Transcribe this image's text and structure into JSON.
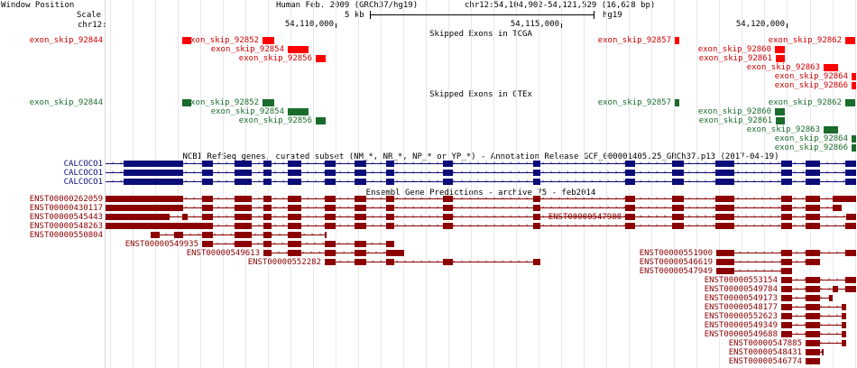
{
  "header": {
    "window_position_label": "Window Position",
    "scale_label": "Scale",
    "chrom_label": "chr12:",
    "assembly": "Human Feb. 2009 (GRCh37/hg19)",
    "position": "chr12:54,104,902-54,121,529 (16,628 bp)",
    "scale_text": "5 kb",
    "scale_db": "hg19",
    "ruler_ticks": [
      "54,110,000",
      "54,115,000",
      "54,120,000"
    ]
  },
  "view": {
    "start": 54104902,
    "end": 54121529
  },
  "colors": {
    "tcga": "#ff0000",
    "tcga_label": "#cc0000",
    "gtex": "#1a6b2c",
    "gtex_label": "#1a6b2c",
    "refseq": "#0c0c78",
    "ensembl": "#8b0000"
  },
  "tracks": {
    "tcga_title": "Skipped Exons in TCGA",
    "gtex_title": "Skipped Exons in GTEx",
    "refseq_title": "NCBI RefSeq genes, curated subset (NM_*, NR_*, NP_* or YP_*) - Annotation Release GCF_000001405.25_GRCh37.p13 (2017-04-19)",
    "ensembl_title": "Ensembl Gene Predictions - archive 75 - feb2014"
  },
  "skipped_exons": [
    {
      "name": "exon_skip_92844",
      "row": 0,
      "start": 54106600,
      "end": 54106790
    },
    {
      "name": "exon_skip_92852",
      "row": 0,
      "start": 54108370,
      "end": 54108620
    },
    {
      "name": "exon_skip_92854",
      "row": 1,
      "start": 54108940,
      "end": 54109390
    },
    {
      "name": "exon_skip_92856",
      "row": 2,
      "start": 54109560,
      "end": 54109780
    },
    {
      "name": "exon_skip_92857",
      "row": 0,
      "start": 54117510,
      "end": 54117600
    },
    {
      "name": "exon_skip_92862",
      "row": 0,
      "start": 54121280,
      "end": 54121500
    },
    {
      "name": "exon_skip_92860",
      "row": 1,
      "start": 54119740,
      "end": 54119960
    },
    {
      "name": "exon_skip_92861",
      "row": 2,
      "start": 54119760,
      "end": 54119960
    },
    {
      "name": "exon_skip_92863",
      "row": 3,
      "start": 54120810,
      "end": 54121130
    },
    {
      "name": "exon_skip_92864",
      "row": 4,
      "start": 54121420,
      "end": 54121529
    },
    {
      "name": "exon_skip_92866",
      "row": 5,
      "start": 54121420,
      "end": 54121529
    }
  ],
  "refseq_genes": [
    {
      "name": "CALCOCO1",
      "start": 54104902,
      "end": 54121529,
      "exons": [
        [
          54105300,
          54106620
        ],
        [
          54107050,
          54107290
        ],
        [
          54107750,
          54108120
        ],
        [
          54108400,
          54108570
        ],
        [
          54108940,
          54109240
        ],
        [
          54109760,
          54110000
        ],
        [
          54110420,
          54110680
        ],
        [
          54111110,
          54111280
        ],
        [
          54112380,
          54112600
        ],
        [
          54114380,
          54114540
        ],
        [
          54116420,
          54116630
        ],
        [
          54117450,
          54117700
        ],
        [
          54118410,
          54118820
        ],
        [
          54119870,
          54120100
        ],
        [
          54120400,
          54120720
        ],
        [
          54121290,
          54121529
        ]
      ]
    },
    {
      "name": "CALCOCO1",
      "start": 54104902,
      "end": 54121529,
      "exons": [
        [
          54105300,
          54106620
        ],
        [
          54107050,
          54107290
        ],
        [
          54107750,
          54108120
        ],
        [
          54108400,
          54108570
        ],
        [
          54108940,
          54109240
        ],
        [
          54109760,
          54110000
        ],
        [
          54110420,
          54110680
        ],
        [
          54111110,
          54111280
        ],
        [
          54112380,
          54112600
        ],
        [
          54114380,
          54114540
        ],
        [
          54116420,
          54116630
        ],
        [
          54117450,
          54117700
        ],
        [
          54118410,
          54118820
        ],
        [
          54119870,
          54120100
        ],
        [
          54120400,
          54120720
        ],
        [
          54121290,
          54121529
        ]
      ]
    },
    {
      "name": "CALCOCO1",
      "start": 54104902,
      "end": 54121529,
      "exons": [
        [
          54105300,
          54106620
        ],
        [
          54107050,
          54107290
        ],
        [
          54107750,
          54108120
        ],
        [
          54108400,
          54108570
        ],
        [
          54108940,
          54109240
        ],
        [
          54109760,
          54110000
        ],
        [
          54110420,
          54110680
        ],
        [
          54111110,
          54111280
        ],
        [
          54112380,
          54112600
        ],
        [
          54114380,
          54114540
        ],
        [
          54116420,
          54116630
        ],
        [
          54117450,
          54117700
        ],
        [
          54118410,
          54118820
        ],
        [
          54119870,
          54120100
        ],
        [
          54120400,
          54120720
        ],
        [
          54121290,
          54121529
        ]
      ]
    }
  ],
  "ensembl_transcripts": [
    {
      "name": "ENST00000262059",
      "label_side": "gutter",
      "row": 0,
      "start": 54104902,
      "end": 54121529,
      "exons": [
        [
          54104902,
          54106620
        ],
        [
          54107050,
          54107290
        ],
        [
          54107750,
          54108120
        ],
        [
          54108400,
          54108570
        ],
        [
          54108940,
          54109240
        ],
        [
          54109760,
          54110000
        ],
        [
          54110420,
          54110680
        ],
        [
          54111110,
          54111280
        ],
        [
          54112380,
          54112600
        ],
        [
          54114380,
          54114540
        ],
        [
          54116420,
          54116630
        ],
        [
          54117450,
          54117700
        ],
        [
          54118410,
          54118820
        ],
        [
          54119870,
          54120100
        ],
        [
          54120400,
          54120720
        ],
        [
          54121000,
          54121529
        ]
      ]
    },
    {
      "name": "ENST00000430117",
      "label_side": "gutter",
      "row": 1,
      "start": 54104902,
      "end": 54121200,
      "exons": [
        [
          54104902,
          54106620
        ],
        [
          54107050,
          54107290
        ],
        [
          54107750,
          54108120
        ],
        [
          54108400,
          54108570
        ],
        [
          54108940,
          54109240
        ],
        [
          54109760,
          54110000
        ],
        [
          54110420,
          54110680
        ],
        [
          54111110,
          54111280
        ],
        [
          54112380,
          54112600
        ],
        [
          54114380,
          54114540
        ],
        [
          54116420,
          54116630
        ],
        [
          54117450,
          54117700
        ],
        [
          54118410,
          54118820
        ],
        [
          54119870,
          54120100
        ],
        [
          54120400,
          54120720
        ],
        [
          54121000,
          54121200
        ]
      ]
    },
    {
      "name": "ENST00000545443",
      "label_side": "gutter",
      "row": 2,
      "start": 54104902,
      "end": 54121529,
      "exons": [
        [
          54104902,
          54106330
        ],
        [
          54106600,
          54106720
        ],
        [
          54107050,
          54107290
        ],
        [
          54107750,
          54108120
        ],
        [
          54108400,
          54108570
        ],
        [
          54108940,
          54109240
        ],
        [
          54109760,
          54110000
        ],
        [
          54110420,
          54110680
        ],
        [
          54111110,
          54111280
        ],
        [
          54112380,
          54112600
        ],
        [
          54114380,
          54114540
        ],
        [
          54116420,
          54116630
        ],
        [
          54117450,
          54117700
        ],
        [
          54118410,
          54118820
        ],
        [
          54119870,
          54120100
        ],
        [
          54120400,
          54120720
        ],
        [
          54121300,
          54121529
        ]
      ]
    },
    {
      "name": "ENST00000548263",
      "label_side": "gutter",
      "row": 3,
      "start": 54104902,
      "end": 54121529,
      "exons": [
        [
          54104902,
          54107290
        ],
        [
          54107750,
          54108120
        ],
        [
          54108400,
          54108570
        ],
        [
          54108940,
          54109240
        ],
        [
          54109760,
          54110000
        ],
        [
          54110420,
          54110680
        ],
        [
          54111110,
          54111280
        ],
        [
          54112380,
          54112600
        ],
        [
          54114380,
          54114540
        ],
        [
          54116420,
          54116630
        ],
        [
          54117450,
          54117700
        ],
        [
          54118410,
          54118820
        ],
        [
          54119870,
          54120100
        ],
        [
          54120400,
          54120720
        ],
        [
          54121290,
          54121529
        ]
      ]
    },
    {
      "name": "ENST00000550804",
      "label_side": "gutter",
      "row": 4,
      "start": 54105900,
      "end": 54109800,
      "exons": [
        [
          54105900,
          54106100
        ],
        [
          54106420,
          54106620
        ],
        [
          54107050,
          54107290
        ],
        [
          54107750,
          54108120
        ],
        [
          54108400,
          54108570
        ],
        [
          54108940,
          54109240
        ],
        [
          54109760,
          54109800
        ]
      ]
    },
    {
      "name": "ENST00000547988",
      "label_side": "left",
      "row": 2,
      "start": 54116420,
      "end": 54118820,
      "exons": [
        [
          54116420,
          54116630
        ],
        [
          54117450,
          54117700
        ],
        [
          54118410,
          54118820
        ]
      ]
    },
    {
      "name": "ENST00000549935",
      "label_side": "left",
      "row": 5,
      "start": 54107050,
      "end": 54111280,
      "exons": [
        [
          54107050,
          54107290
        ],
        [
          54107750,
          54108120
        ],
        [
          54108400,
          54108570
        ],
        [
          54108940,
          54109240
        ],
        [
          54109760,
          54110000
        ],
        [
          54110420,
          54110680
        ],
        [
          54111110,
          54111280
        ]
      ]
    },
    {
      "name": "ENST00000549613",
      "label_side": "left",
      "row": 6,
      "start": 54108400,
      "end": 54111500,
      "exons": [
        [
          54108400,
          54108570
        ],
        [
          54108940,
          54109240
        ],
        [
          54109760,
          54110000
        ],
        [
          54110420,
          54110680
        ],
        [
          54111110,
          54111500
        ]
      ]
    },
    {
      "name": "ENST00000552282",
      "label_side": "left",
      "row": 7,
      "start": 54109760,
      "end": 54114540,
      "exons": [
        [
          54109760,
          54110000
        ],
        [
          54110420,
          54110680
        ],
        [
          54111110,
          54111280
        ],
        [
          54112380,
          54112600
        ],
        [
          54114380,
          54114540
        ]
      ]
    },
    {
      "name": "ENST00000551900",
      "label_side": "left",
      "row": 6,
      "start": 54118430,
      "end": 54121529,
      "exons": [
        [
          54118430,
          54118820
        ],
        [
          54119870,
          54120100
        ],
        [
          54120400,
          54120720
        ],
        [
          54121290,
          54121529
        ]
      ]
    },
    {
      "name": "ENST00000546619",
      "label_side": "left",
      "row": 7,
      "start": 54118430,
      "end": 54120720,
      "exons": [
        [
          54118430,
          54118820
        ],
        [
          54119870,
          54120100
        ],
        [
          54120400,
          54120720
        ]
      ]
    },
    {
      "name": "ENST00000547949",
      "label_side": "left",
      "row": 8,
      "start": 54118430,
      "end": 54120100,
      "exons": [
        [
          54118430,
          54118820
        ],
        [
          54119870,
          54120100
        ]
      ]
    },
    {
      "name": "ENST00000553154",
      "label_side": "left",
      "row": 9,
      "start": 54119870,
      "end": 54121529,
      "exons": [
        [
          54119870,
          54120100
        ],
        [
          54120400,
          54120720
        ],
        [
          54121290,
          54121529
        ]
      ]
    },
    {
      "name": "ENST00000549784",
      "label_side": "left",
      "row": 10,
      "start": 54119870,
      "end": 54121529,
      "exons": [
        [
          54119870,
          54120100
        ],
        [
          54120400,
          54120720
        ],
        [
          54121000,
          54121120
        ],
        [
          54121290,
          54121529
        ]
      ]
    },
    {
      "name": "ENST00000549173",
      "label_side": "left",
      "row": 11,
      "start": 54119870,
      "end": 54121000,
      "exons": [
        [
          54119870,
          54120100
        ],
        [
          54120400,
          54120720
        ],
        [
          54120920,
          54121000
        ]
      ]
    },
    {
      "name": "ENST00000548177",
      "label_side": "left",
      "row": 12,
      "start": 54119870,
      "end": 54121300,
      "exons": [
        [
          54119870,
          54120100
        ],
        [
          54120400,
          54120720
        ],
        [
          54121200,
          54121300
        ]
      ]
    },
    {
      "name": "ENST00000552623",
      "label_side": "left",
      "row": 13,
      "start": 54119870,
      "end": 54121300,
      "exons": [
        [
          54119870,
          54120100
        ],
        [
          54120400,
          54120720
        ],
        [
          54121200,
          54121300
        ]
      ]
    },
    {
      "name": "ENST00000549349",
      "label_side": "left",
      "row": 14,
      "start": 54119870,
      "end": 54121300,
      "exons": [
        [
          54119870,
          54120100
        ],
        [
          54120400,
          54120720
        ],
        [
          54121200,
          54121300
        ]
      ]
    },
    {
      "name": "ENST00000549688",
      "label_side": "left",
      "row": 15,
      "start": 54119870,
      "end": 54121300,
      "exons": [
        [
          54119870,
          54120100
        ],
        [
          54120400,
          54120720
        ],
        [
          54121200,
          54121300
        ]
      ]
    },
    {
      "name": "ENST00000547885",
      "label_side": "left",
      "row": 16,
      "start": 54120400,
      "end": 54121300,
      "exons": [
        [
          54120400,
          54120720
        ],
        [
          54121200,
          54121300
        ]
      ]
    },
    {
      "name": "ENST00000548431",
      "label_side": "left",
      "row": 17,
      "start": 54120400,
      "end": 54120800,
      "exons": [
        [
          54120400,
          54120720
        ],
        [
          54120760,
          54120800
        ]
      ]
    },
    {
      "name": "ENST00000546774",
      "label_side": "left",
      "row": 18,
      "start": 54120400,
      "end": 54120720,
      "exons": [
        [
          54120400,
          54120720
        ]
      ]
    }
  ]
}
